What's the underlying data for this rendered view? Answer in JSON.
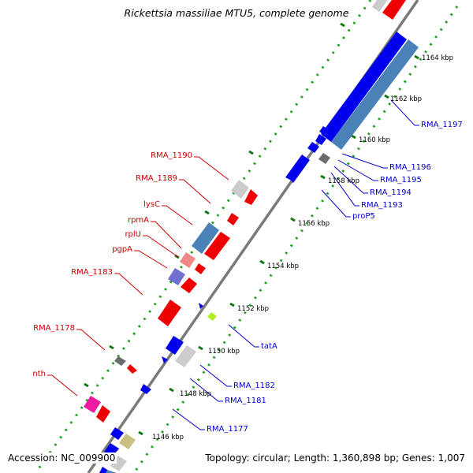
{
  "title": "Rickettsia massiliae MTU5, complete genome",
  "footer": {
    "accession": "Accession: NC_009900",
    "topology": "Topology: circular; Length: 1,360,898 bp; Genes: 1,007"
  },
  "colors": {
    "backbone": "#7f7f7f",
    "dots": "#1fa31f",
    "forward_label": "#cc0000",
    "reverse_label": "#0000cc",
    "red_gene": "#ee0000",
    "blue_gene": "#0000ee",
    "steel_gene": "#4a82b8",
    "light_grey_gene": "#cccccc",
    "dark_grey_gene": "#6b6b6b",
    "pink_gene": "#f08888",
    "magenta_gene": "#ee1aa0",
    "purple_gene": "#7070d0",
    "khaki_gene": "#c8c080",
    "lime_gene": "#b4ee20"
  },
  "ticks": [
    {
      "label": "1146 kbp"
    },
    {
      "label": "1148 kbp"
    },
    {
      "label": "1150 kbp"
    },
    {
      "label": "1152 kbp"
    },
    {
      "label": "1154 kbp"
    },
    {
      "label": "1156 kbp"
    },
    {
      "label": "1158 kbp"
    },
    {
      "label": "1160 kbp"
    },
    {
      "label": "1162 kbp"
    },
    {
      "label": "1164 kbp"
    }
  ],
  "left_labels": [
    {
      "text": "RMA_1190"
    },
    {
      "text": "RMA_1189"
    },
    {
      "text": "lysC"
    },
    {
      "text": "rpmA"
    },
    {
      "text": "rplU"
    },
    {
      "text": "pgpA"
    },
    {
      "text": "RMA_1183"
    },
    {
      "text": "RMA_1178"
    },
    {
      "text": "nth"
    }
  ],
  "right_labels": [
    {
      "text": "RMA_1197"
    },
    {
      "text": "RMA_1196"
    },
    {
      "text": "RMA_1195"
    },
    {
      "text": "RMA_1194"
    },
    {
      "text": "RMA_1193"
    },
    {
      "text": "proP5"
    },
    {
      "text": "tatA"
    },
    {
      "text": "RMA_1182"
    },
    {
      "text": "RMA_1181"
    },
    {
      "text": "RMA_1177"
    }
  ]
}
